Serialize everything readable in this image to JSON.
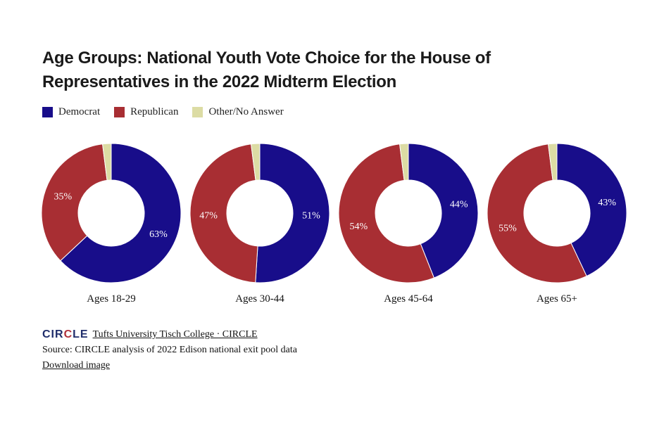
{
  "title": "Age Groups: National Youth Vote Choice for the House of Representatives in the 2022 Midterm Election",
  "legend": [
    {
      "label": "Democrat",
      "color": "#180d8a"
    },
    {
      "label": "Republican",
      "color": "#a82e33"
    },
    {
      "label": "Other/No Answer",
      "color": "#dcdca4"
    }
  ],
  "chart_data": {
    "type": "pie",
    "title": "Age Groups: National Youth Vote Choice for the House of Representatives in the 2022 Midterm Election",
    "series_names": [
      "Democrat",
      "Republican",
      "Other/No Answer"
    ],
    "colors": [
      "#180d8a",
      "#a82e33",
      "#dcdca4"
    ],
    "charts": [
      {
        "label": "Ages 18-29",
        "values": [
          63,
          35,
          2
        ],
        "data_labels": [
          "63%",
          "35%",
          ""
        ]
      },
      {
        "label": "Ages 30-44",
        "values": [
          51,
          47,
          2
        ],
        "data_labels": [
          "51%",
          "47%",
          ""
        ]
      },
      {
        "label": "Ages 45-64",
        "values": [
          44,
          54,
          2
        ],
        "data_labels": [
          "44%",
          "54%",
          ""
        ]
      },
      {
        "label": "Ages 65+",
        "values": [
          43,
          55,
          2
        ],
        "data_labels": [
          "43%",
          "55%",
          ""
        ]
      }
    ]
  },
  "footer": {
    "logo_text": "CIRCLE",
    "credit_link": "Tufts University Tisch College · CIRCLE",
    "source": "Source: CIRCLE analysis of 2022 Edison national exit pool data",
    "download": "Download image"
  }
}
